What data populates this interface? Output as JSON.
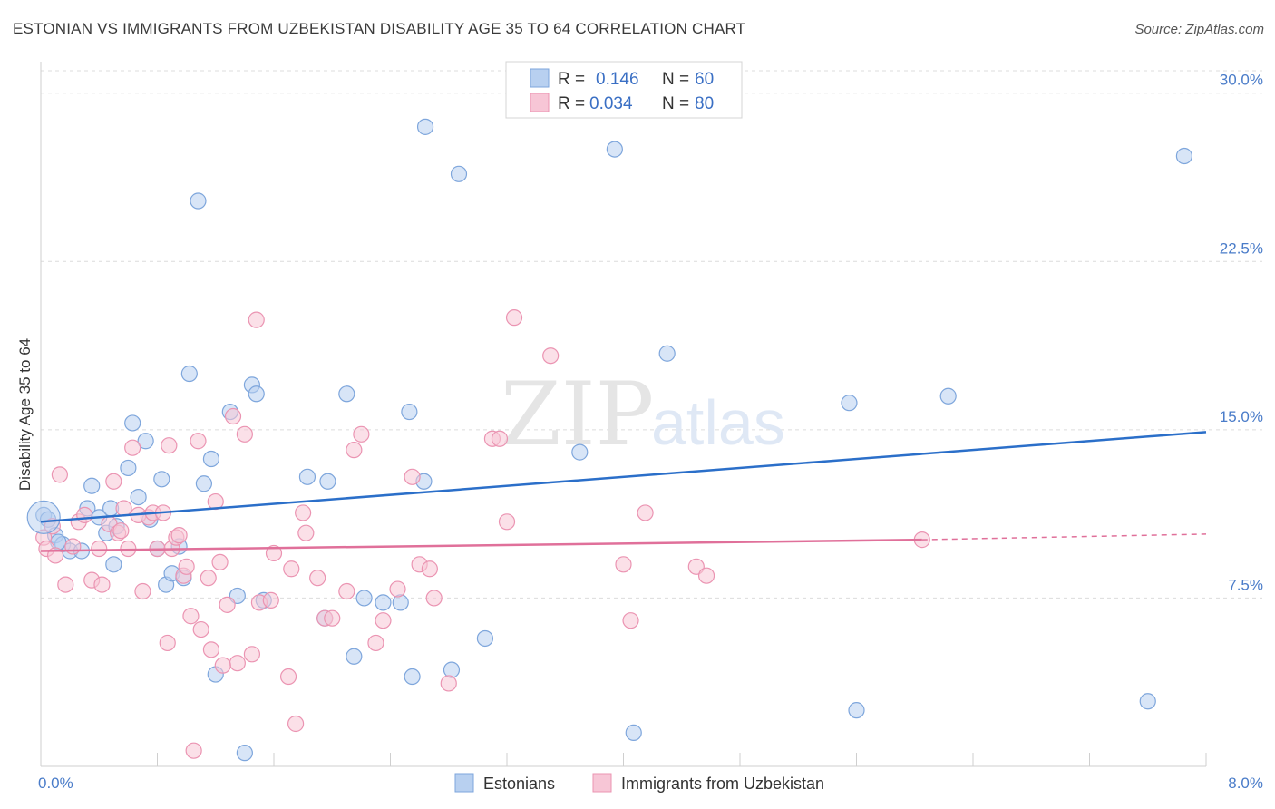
{
  "title": "ESTONIAN VS IMMIGRANTS FROM UZBEKISTAN DISABILITY AGE 35 TO 64 CORRELATION CHART",
  "source": "Source: ZipAtlas.com",
  "watermark": {
    "zip": "ZIP",
    "atlas": "atlas"
  },
  "colors": {
    "blue_fill": "#b8d0f0",
    "blue_stroke": "#7ea6dc",
    "blue_line": "#2b6fc9",
    "pink_fill": "#f7c6d6",
    "pink_stroke": "#eb94b2",
    "pink_line": "#e0709a",
    "grid": "#dcdcdc",
    "tick_text": "#4a7cc9"
  },
  "legend": {
    "rows": [
      {
        "r_label": "R = ",
        "r_value": "0.146",
        "n_label": "N = ",
        "n_value": "60"
      },
      {
        "r_label": "R = ",
        "r_value": "0.034",
        "n_label": "N = ",
        "n_value": "80"
      }
    ]
  },
  "bottom_legend": [
    "Estonians",
    "Immigrants from Uzbekistan"
  ],
  "chart_data": {
    "type": "scatter",
    "xlabel": "",
    "ylabel": "Disability Age 35 to 64",
    "xlim": [
      0,
      8
    ],
    "ylim": [
      0,
      31
    ],
    "x_tick_labels": [
      "0.0%",
      "8.0%"
    ],
    "y_ticks": [
      7.5,
      15.0,
      22.5,
      30.0
    ],
    "y_tick_labels": [
      "7.5%",
      "15.0%",
      "22.5%",
      "30.0%"
    ],
    "grid": true,
    "legend_position": "top-center",
    "series": [
      {
        "name": "Estonians",
        "r": 0.146,
        "n": 60,
        "trend": {
          "x0": 0,
          "y0": 10.9,
          "x1": 8,
          "y1": 14.9
        },
        "points": [
          [
            0.02,
            11.2
          ],
          [
            0.1,
            10.3
          ],
          [
            0.15,
            9.9
          ],
          [
            0.2,
            9.6
          ],
          [
            0.28,
            9.6
          ],
          [
            0.32,
            11.5
          ],
          [
            0.35,
            12.5
          ],
          [
            0.4,
            11.1
          ],
          [
            0.45,
            10.4
          ],
          [
            0.48,
            11.5
          ],
          [
            0.5,
            9.0
          ],
          [
            0.52,
            10.7
          ],
          [
            0.6,
            13.3
          ],
          [
            0.63,
            15.3
          ],
          [
            0.67,
            12.0
          ],
          [
            0.72,
            14.5
          ],
          [
            0.75,
            11.0
          ],
          [
            0.8,
            9.7
          ],
          [
            0.83,
            12.8
          ],
          [
            0.86,
            8.1
          ],
          [
            0.9,
            8.6
          ],
          [
            0.95,
            9.8
          ],
          [
            0.98,
            8.4
          ],
          [
            1.02,
            17.5
          ],
          [
            1.08,
            25.2
          ],
          [
            1.12,
            12.6
          ],
          [
            1.17,
            13.7
          ],
          [
            1.2,
            4.1
          ],
          [
            1.3,
            15.8
          ],
          [
            1.35,
            7.6
          ],
          [
            1.4,
            0.6
          ],
          [
            1.45,
            17.0
          ],
          [
            1.48,
            16.6
          ],
          [
            1.53,
            7.4
          ],
          [
            1.83,
            12.9
          ],
          [
            1.95,
            6.6
          ],
          [
            1.97,
            12.7
          ],
          [
            2.1,
            16.6
          ],
          [
            2.15,
            4.9
          ],
          [
            2.22,
            7.5
          ],
          [
            2.35,
            7.3
          ],
          [
            2.47,
            7.3
          ],
          [
            2.53,
            15.8
          ],
          [
            2.55,
            4.0
          ],
          [
            2.63,
            12.7
          ],
          [
            2.64,
            28.5
          ],
          [
            2.82,
            4.3
          ],
          [
            2.87,
            26.4
          ],
          [
            3.05,
            5.7
          ],
          [
            3.7,
            14.0
          ],
          [
            3.94,
            27.5
          ],
          [
            4.07,
            1.5
          ],
          [
            4.3,
            18.4
          ],
          [
            5.55,
            16.2
          ],
          [
            5.6,
            2.5
          ],
          [
            6.23,
            16.5
          ],
          [
            7.6,
            2.9
          ],
          [
            7.85,
            27.2
          ],
          [
            0.05,
            11.0
          ],
          [
            0.12,
            10.0
          ]
        ]
      },
      {
        "name": "Immigrants from Uzbekistan",
        "r": 0.034,
        "n": 80,
        "trend": {
          "x0": 0,
          "y0": 9.6,
          "x1": 6.05,
          "y1": 10.1,
          "dash_x1": 8,
          "dash_y1": 10.35
        },
        "points": [
          [
            0.02,
            10.2
          ],
          [
            0.04,
            9.7
          ],
          [
            0.1,
            9.4
          ],
          [
            0.13,
            13.0
          ],
          [
            0.17,
            8.1
          ],
          [
            0.22,
            9.8
          ],
          [
            0.26,
            10.9
          ],
          [
            0.3,
            11.2
          ],
          [
            0.35,
            8.3
          ],
          [
            0.4,
            9.7
          ],
          [
            0.42,
            8.1
          ],
          [
            0.47,
            10.8
          ],
          [
            0.5,
            12.7
          ],
          [
            0.53,
            10.4
          ],
          [
            0.57,
            11.5
          ],
          [
            0.6,
            9.7
          ],
          [
            0.63,
            14.2
          ],
          [
            0.67,
            11.2
          ],
          [
            0.7,
            7.8
          ],
          [
            0.74,
            11.1
          ],
          [
            0.77,
            11.3
          ],
          [
            0.8,
            9.7
          ],
          [
            0.84,
            11.3
          ],
          [
            0.87,
            5.5
          ],
          [
            0.88,
            14.3
          ],
          [
            0.9,
            9.7
          ],
          [
            0.93,
            10.2
          ],
          [
            0.95,
            10.3
          ],
          [
            0.98,
            8.5
          ],
          [
            1.0,
            8.9
          ],
          [
            1.03,
            6.7
          ],
          [
            1.05,
            0.7
          ],
          [
            1.08,
            14.5
          ],
          [
            1.1,
            6.1
          ],
          [
            1.15,
            8.4
          ],
          [
            1.17,
            5.2
          ],
          [
            1.2,
            11.8
          ],
          [
            1.23,
            9.1
          ],
          [
            1.28,
            7.2
          ],
          [
            1.32,
            15.6
          ],
          [
            1.35,
            4.6
          ],
          [
            1.4,
            14.8
          ],
          [
            1.45,
            5.0
          ],
          [
            1.48,
            19.9
          ],
          [
            1.5,
            7.3
          ],
          [
            1.58,
            7.4
          ],
          [
            1.6,
            9.5
          ],
          [
            1.7,
            4.0
          ],
          [
            1.72,
            8.8
          ],
          [
            1.75,
            1.9
          ],
          [
            1.8,
            11.3
          ],
          [
            1.82,
            10.4
          ],
          [
            1.9,
            8.4
          ],
          [
            1.95,
            6.6
          ],
          [
            2.0,
            6.6
          ],
          [
            2.1,
            7.8
          ],
          [
            2.15,
            14.1
          ],
          [
            2.2,
            14.8
          ],
          [
            2.3,
            5.5
          ],
          [
            2.35,
            6.5
          ],
          [
            2.45,
            7.9
          ],
          [
            2.55,
            12.9
          ],
          [
            2.6,
            9.0
          ],
          [
            2.67,
            8.8
          ],
          [
            2.7,
            7.5
          ],
          [
            2.8,
            3.7
          ],
          [
            3.1,
            14.6
          ],
          [
            3.15,
            14.6
          ],
          [
            3.2,
            10.9
          ],
          [
            3.25,
            20.0
          ],
          [
            3.5,
            18.3
          ],
          [
            4.0,
            9.0
          ],
          [
            4.05,
            6.5
          ],
          [
            4.15,
            11.3
          ],
          [
            4.5,
            8.9
          ],
          [
            4.57,
            8.5
          ],
          [
            6.05,
            10.1
          ],
          [
            0.08,
            10.7
          ],
          [
            1.25,
            4.5
          ],
          [
            0.55,
            10.5
          ]
        ]
      }
    ]
  }
}
